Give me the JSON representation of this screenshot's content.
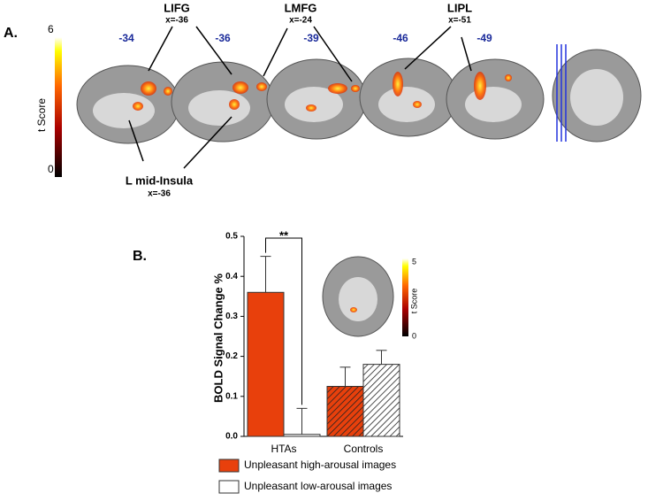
{
  "panel_a": {
    "label": "A.",
    "colorbar": {
      "label": "t Score",
      "max": 6,
      "min": 0
    },
    "slices": [
      "-34",
      "-36",
      "-39",
      "-46",
      "-49"
    ],
    "annotations": [
      {
        "name": "LIFG",
        "coord": "x=-36"
      },
      {
        "name": "LMFG",
        "coord": "x=-24"
      },
      {
        "name": "LIPL",
        "coord": "x=-51"
      },
      {
        "name": "L mid-Insula",
        "coord": "x=-36"
      }
    ]
  },
  "chart_data": {
    "type": "bar",
    "panel_label": "B.",
    "y_label": "BOLD Signal Change %",
    "categories": [
      "HTAs",
      "Controls"
    ],
    "series": [
      {
        "name": "Unpleasant high-arousal images",
        "color": "#e8400c",
        "values": [
          0.36,
          0.125
        ],
        "errors": [
          0.09,
          0.048
        ],
        "hatched": [
          false,
          true
        ]
      },
      {
        "name": "Unpleasant low-arousal images",
        "color": "#ffffff",
        "values": [
          0.005,
          0.18
        ],
        "errors": [
          0.065,
          0.035
        ],
        "hatched": [
          false,
          true
        ]
      }
    ],
    "ylim": [
      0,
      0.5
    ],
    "yticks": [
      {
        "value": 0,
        "label": "0.0"
      },
      0.1,
      0.2,
      0.3,
      0.4,
      0.5
    ],
    "significance": "**",
    "inset_colorbar": {
      "label": "t Score",
      "max": 5,
      "min": 0
    }
  }
}
